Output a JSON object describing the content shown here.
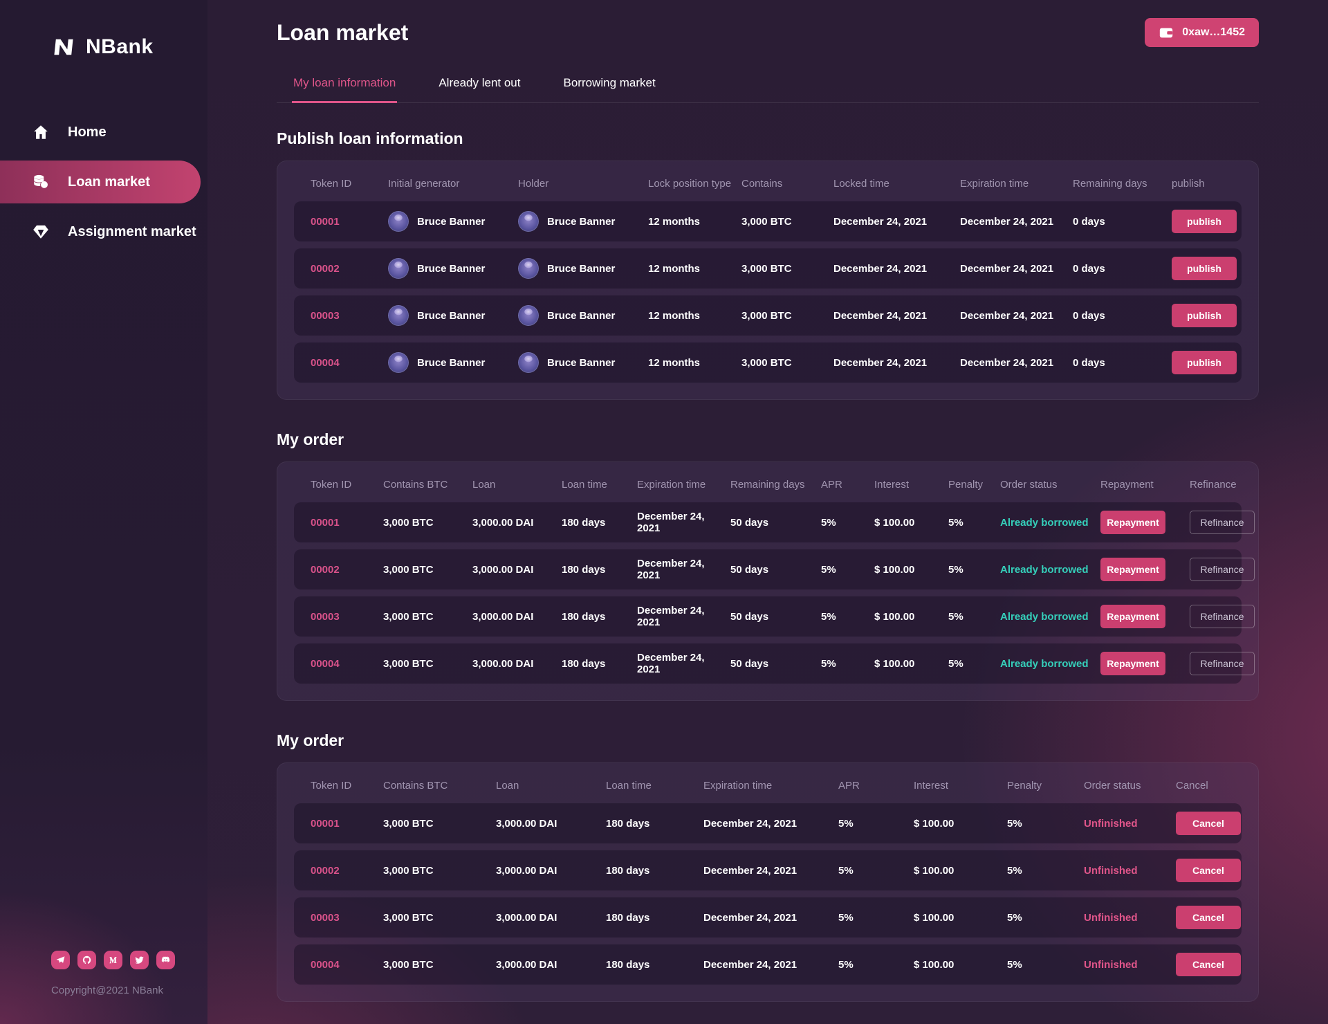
{
  "brand": {
    "name": "NBank"
  },
  "colors": {
    "accent": "#cf4372",
    "token_link": "#d9528a",
    "status_ok": "#35cfba",
    "status_warn": "#e0558a"
  },
  "sidebar": {
    "items": [
      {
        "label": "Home",
        "active": false
      },
      {
        "label": "Loan market",
        "active": true
      },
      {
        "label": "Assignment market",
        "active": false
      }
    ],
    "social": [
      "telegram-icon",
      "github-icon",
      "medium-icon",
      "twitter-icon",
      "discord-icon"
    ],
    "copyright": "Copyright@2021 NBank"
  },
  "header": {
    "title": "Loan market",
    "wallet_address": "0xaw…1452"
  },
  "tabs": [
    {
      "label": "My loan information",
      "active": true
    },
    {
      "label": "Already lent out",
      "active": false
    },
    {
      "label": "Borrowing market",
      "active": false
    }
  ],
  "sections": [
    {
      "title": "Publish loan information"
    },
    {
      "title": "My order"
    },
    {
      "title": "My order"
    }
  ],
  "tables": {
    "publish": {
      "columns": [
        {
          "label": "Token ID",
          "key": "token_id",
          "type": "token"
        },
        {
          "label": "Initial generator",
          "key": "initial_generator",
          "type": "avatar"
        },
        {
          "label": "Holder",
          "key": "holder",
          "type": "avatar"
        },
        {
          "label": "Lock position type",
          "key": "lock_position_type",
          "type": "text"
        },
        {
          "label": "Contains",
          "key": "contains",
          "type": "text"
        },
        {
          "label": "Locked time",
          "key": "locked_time",
          "type": "text"
        },
        {
          "label": "Expiration time",
          "key": "expiration_time",
          "type": "text"
        },
        {
          "label": "Remaining days",
          "key": "remaining_days",
          "type": "text"
        },
        {
          "label": "publish",
          "key": "publish",
          "type": "button-solid"
        }
      ],
      "rows": [
        {
          "token_id": "00001",
          "initial_generator": "Bruce Banner",
          "holder": "Bruce Banner",
          "lock_position_type": "12 months",
          "contains": "3,000 BTC",
          "locked_time": "December 24, 2021",
          "expiration_time": "December 24, 2021",
          "remaining_days": "0 days",
          "publish": "publish"
        },
        {
          "token_id": "00002",
          "initial_generator": "Bruce Banner",
          "holder": "Bruce Banner",
          "lock_position_type": "12 months",
          "contains": "3,000 BTC",
          "locked_time": "December 24, 2021",
          "expiration_time": "December 24, 2021",
          "remaining_days": "0 days",
          "publish": "publish"
        },
        {
          "token_id": "00003",
          "initial_generator": "Bruce Banner",
          "holder": "Bruce Banner",
          "lock_position_type": "12 months",
          "contains": "3,000 BTC",
          "locked_time": "December 24, 2021",
          "expiration_time": "December 24, 2021",
          "remaining_days": "0 days",
          "publish": "publish"
        },
        {
          "token_id": "00004",
          "initial_generator": "Bruce Banner",
          "holder": "Bruce Banner",
          "lock_position_type": "12 months",
          "contains": "3,000 BTC",
          "locked_time": "December 24, 2021",
          "expiration_time": "December 24, 2021",
          "remaining_days": "0 days",
          "publish": "publish"
        }
      ]
    },
    "order": {
      "columns": [
        {
          "label": "Token ID",
          "key": "token_id",
          "type": "token"
        },
        {
          "label": "Contains BTC",
          "key": "contains_btc",
          "type": "text"
        },
        {
          "label": "Loan",
          "key": "loan",
          "type": "text"
        },
        {
          "label": "Loan time",
          "key": "loan_time",
          "type": "text"
        },
        {
          "label": "Expiration time",
          "key": "expiration_time",
          "type": "text"
        },
        {
          "label": "Remaining days",
          "key": "remaining_days",
          "type": "text"
        },
        {
          "label": "APR",
          "key": "apr",
          "type": "text"
        },
        {
          "label": "Interest",
          "key": "interest",
          "type": "text"
        },
        {
          "label": "Penalty",
          "key": "penalty",
          "type": "text"
        },
        {
          "label": "Order status",
          "key": "order_status",
          "type": "status-ok"
        },
        {
          "label": "Repayment",
          "key": "repayment",
          "type": "button-solid"
        },
        {
          "label": "Refinance",
          "key": "refinance",
          "type": "button-outline"
        }
      ],
      "rows": [
        {
          "token_id": "00001",
          "contains_btc": "3,000 BTC",
          "loan": "3,000.00 DAI",
          "loan_time": "180 days",
          "expiration_time": "December 24, 2021",
          "remaining_days": "50 days",
          "apr": "5%",
          "interest": "$ 100.00",
          "penalty": "5%",
          "order_status": "Already borrowed",
          "repayment": "Repayment",
          "refinance": "Refinance"
        },
        {
          "token_id": "00002",
          "contains_btc": "3,000 BTC",
          "loan": "3,000.00 DAI",
          "loan_time": "180 days",
          "expiration_time": "December 24, 2021",
          "remaining_days": "50 days",
          "apr": "5%",
          "interest": "$ 100.00",
          "penalty": "5%",
          "order_status": "Already borrowed",
          "repayment": "Repayment",
          "refinance": "Refinance"
        },
        {
          "token_id": "00003",
          "contains_btc": "3,000 BTC",
          "loan": "3,000.00 DAI",
          "loan_time": "180 days",
          "expiration_time": "December 24, 2021",
          "remaining_days": "50 days",
          "apr": "5%",
          "interest": "$ 100.00",
          "penalty": "5%",
          "order_status": "Already borrowed",
          "repayment": "Repayment",
          "refinance": "Refinance"
        },
        {
          "token_id": "00004",
          "contains_btc": "3,000 BTC",
          "loan": "3,000.00 DAI",
          "loan_time": "180 days",
          "expiration_time": "December 24, 2021",
          "remaining_days": "50 days",
          "apr": "5%",
          "interest": "$ 100.00",
          "penalty": "5%",
          "order_status": "Already borrowed",
          "repayment": "Repayment",
          "refinance": "Refinance"
        }
      ]
    },
    "cancel": {
      "columns": [
        {
          "label": "Token ID",
          "key": "token_id",
          "type": "token"
        },
        {
          "label": "Contains BTC",
          "key": "contains_btc",
          "type": "text"
        },
        {
          "label": "Loan",
          "key": "loan",
          "type": "text"
        },
        {
          "label": "Loan time",
          "key": "loan_time",
          "type": "text"
        },
        {
          "label": "Expiration time",
          "key": "expiration_time",
          "type": "text"
        },
        {
          "label": "APR",
          "key": "apr",
          "type": "text"
        },
        {
          "label": "Interest",
          "key": "interest",
          "type": "text"
        },
        {
          "label": "Penalty",
          "key": "penalty",
          "type": "text"
        },
        {
          "label": "Order status",
          "key": "order_status",
          "type": "status-warn"
        },
        {
          "label": "Cancel",
          "key": "cancel",
          "type": "button-solid"
        }
      ],
      "rows": [
        {
          "token_id": "00001",
          "contains_btc": "3,000 BTC",
          "loan": "3,000.00 DAI",
          "loan_time": "180 days",
          "expiration_time": "December 24, 2021",
          "apr": "5%",
          "interest": "$ 100.00",
          "penalty": "5%",
          "order_status": "Unfinished",
          "cancel": "Cancel"
        },
        {
          "token_id": "00002",
          "contains_btc": "3,000 BTC",
          "loan": "3,000.00 DAI",
          "loan_time": "180 days",
          "expiration_time": "December 24, 2021",
          "apr": "5%",
          "interest": "$ 100.00",
          "penalty": "5%",
          "order_status": "Unfinished",
          "cancel": "Cancel"
        },
        {
          "token_id": "00003",
          "contains_btc": "3,000 BTC",
          "loan": "3,000.00 DAI",
          "loan_time": "180 days",
          "expiration_time": "December 24, 2021",
          "apr": "5%",
          "interest": "$ 100.00",
          "penalty": "5%",
          "order_status": "Unfinished",
          "cancel": "Cancel"
        },
        {
          "token_id": "00004",
          "contains_btc": "3,000 BTC",
          "loan": "3,000.00 DAI",
          "loan_time": "180 days",
          "expiration_time": "December 24, 2021",
          "apr": "5%",
          "interest": "$ 100.00",
          "penalty": "5%",
          "order_status": "Unfinished",
          "cancel": "Cancel"
        }
      ]
    }
  }
}
